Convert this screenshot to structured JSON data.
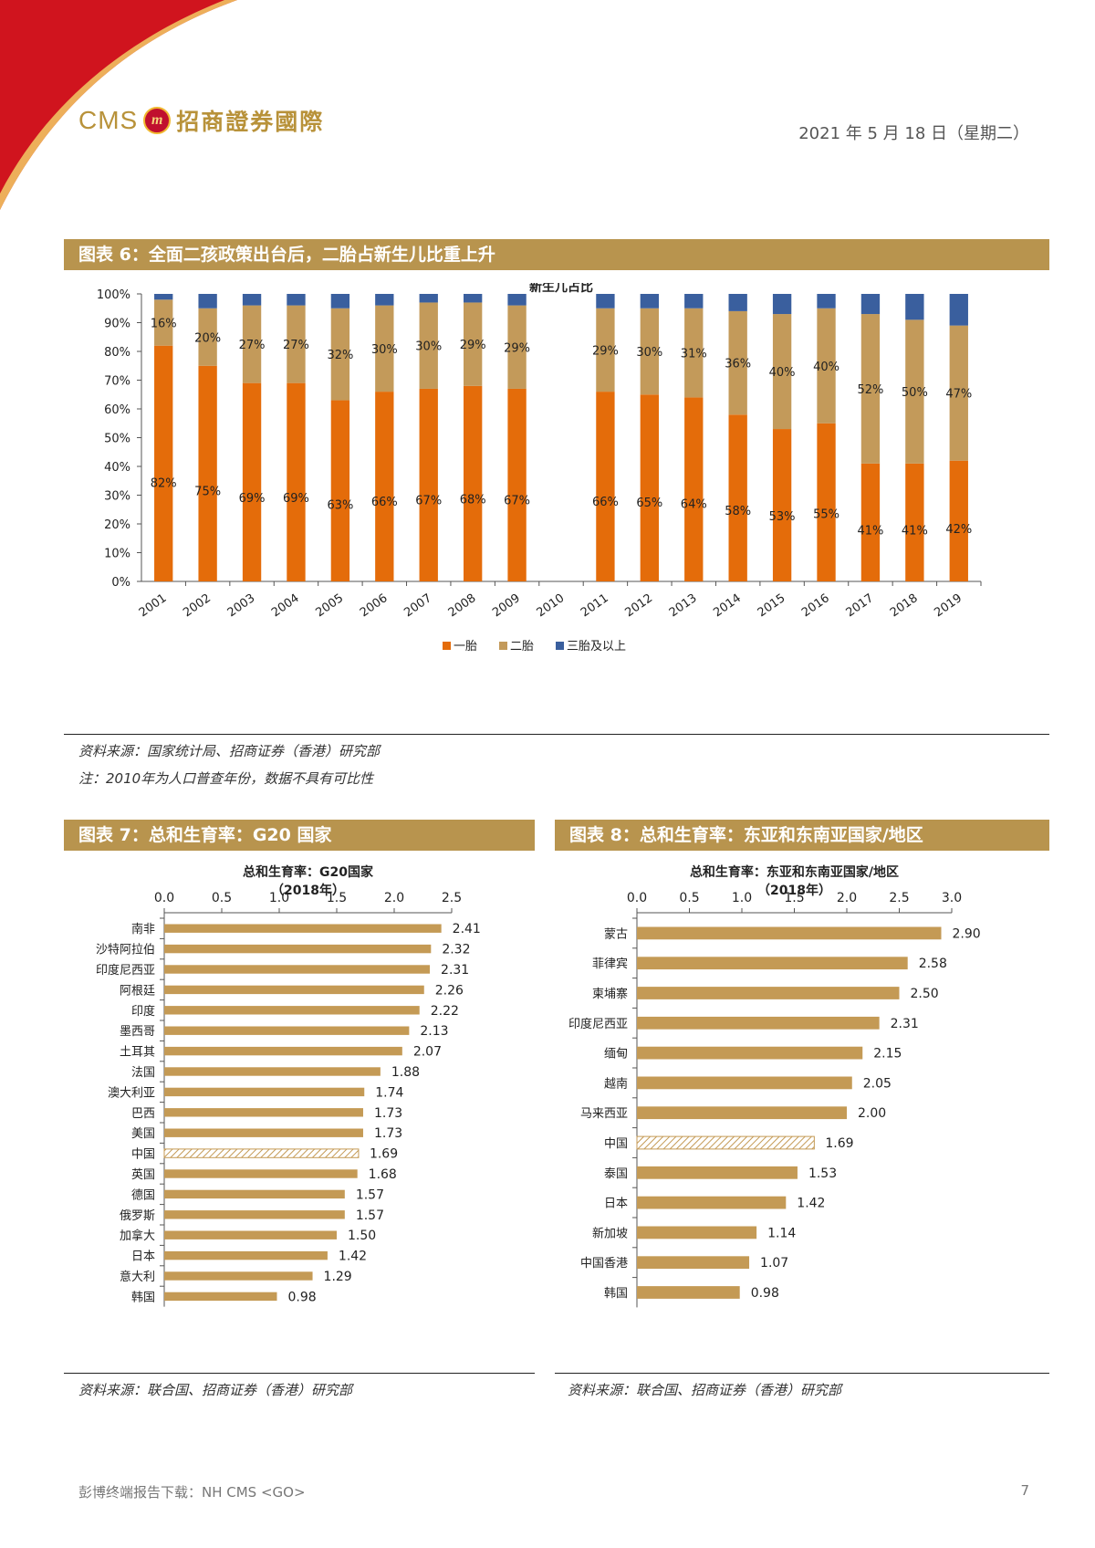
{
  "header": {
    "logo_text": "CMS",
    "logo_mark": "m",
    "logo_cn": "招商證券國際",
    "date": "2021 年 5 月 18 日（星期二）"
  },
  "fig6": {
    "heading": "图表 6：全面二孩政策出台后，二胎占新生儿比重上升",
    "source": "资料来源：国家统计局、招商证券（香港）研究部",
    "note": "注：2010年为人口普查年份，数据不具有可比性"
  },
  "fig7": {
    "heading": "图表 7：总和生育率：G20 国家",
    "source": "资料来源：联合国、招商证券（香港）研究部"
  },
  "fig8": {
    "heading": "图表 8：总和生育率：东亚和东南亚国家/地区",
    "source": "资料来源：联合国、招商证券（香港）研究部"
  },
  "footer": {
    "left": "彭博终端报告下载：NH CMS <GO>",
    "page": "7"
  },
  "colors": {
    "first": "#e46c0a",
    "second": "#c39a5a",
    "third": "#3a5f9e",
    "bar": "#c49a55",
    "gold": "#b8944e"
  },
  "chart_data": [
    {
      "type": "bar",
      "stacked": true,
      "title": "新生儿占比",
      "categories": [
        "2001",
        "2002",
        "2003",
        "2004",
        "2005",
        "2006",
        "2007",
        "2008",
        "2009",
        "2010",
        "2011",
        "2012",
        "2013",
        "2014",
        "2015",
        "2016",
        "2017",
        "2018",
        "2019"
      ],
      "series": [
        {
          "name": "一胎",
          "values": [
            82,
            75,
            69,
            69,
            63,
            66,
            67,
            68,
            67,
            null,
            66,
            65,
            64,
            58,
            53,
            55,
            41,
            41,
            42
          ],
          "labels": [
            "82%",
            "75%",
            "69%",
            "69%",
            "63%",
            "66%",
            "67%",
            "68%",
            "67%",
            null,
            "66%",
            "65%",
            "64%",
            "58%",
            "53%",
            "55%",
            "41%",
            "41%",
            "42%"
          ]
        },
        {
          "name": "二胎",
          "values": [
            16,
            20,
            27,
            27,
            32,
            30,
            30,
            29,
            29,
            null,
            29,
            30,
            31,
            36,
            40,
            40,
            52,
            50,
            47
          ],
          "labels": [
            "16%",
            "20%",
            "27%",
            "27%",
            "32%",
            "30%",
            "30%",
            "29%",
            "29%",
            null,
            "29%",
            "30%",
            "31%",
            "36%",
            "40%",
            "40%",
            "52%",
            "50%",
            "47%"
          ]
        },
        {
          "name": "三胎及以上",
          "values": [
            2,
            5,
            4,
            4,
            5,
            4,
            3,
            3,
            4,
            null,
            5,
            5,
            5,
            6,
            7,
            5,
            7,
            9,
            11
          ]
        }
      ],
      "yticks": [
        "0%",
        "10%",
        "20%",
        "30%",
        "40%",
        "50%",
        "60%",
        "70%",
        "80%",
        "90%",
        "100%"
      ],
      "ylim": [
        0,
        100
      ],
      "legend": "bottom"
    },
    {
      "type": "bar",
      "orientation": "horizontal",
      "title": "总和生育率：G20国家",
      "subtitle": "（2018年）",
      "categories": [
        "南非",
        "沙特阿拉伯",
        "印度尼西亚",
        "阿根廷",
        "印度",
        "墨西哥",
        "土耳其",
        "法国",
        "澳大利亚",
        "巴西",
        "美国",
        "中国",
        "英国",
        "德国",
        "俄罗斯",
        "加拿大",
        "日本",
        "意大利",
        "韩国"
      ],
      "values": [
        2.41,
        2.32,
        2.31,
        2.26,
        2.22,
        2.13,
        2.07,
        1.88,
        1.74,
        1.73,
        1.73,
        1.69,
        1.68,
        1.57,
        1.57,
        1.5,
        1.42,
        1.29,
        0.98
      ],
      "labels": [
        "2.41",
        "2.32",
        "2.31",
        "2.26",
        "2.22",
        "2.13",
        "2.07",
        "1.88",
        "1.74",
        "1.73",
        "1.73",
        "1.69",
        "1.68",
        "1.57",
        "1.57",
        "1.50",
        "1.42",
        "1.29",
        "0.98"
      ],
      "highlight": "中国",
      "xticks": [
        "0.0",
        "0.5",
        "1.0",
        "1.5",
        "2.0",
        "2.5"
      ],
      "xlim": [
        0,
        2.5
      ]
    },
    {
      "type": "bar",
      "orientation": "horizontal",
      "title": "总和生育率：东亚和东南亚国家/地区",
      "subtitle": "（2018年）",
      "categories": [
        "蒙古",
        "菲律宾",
        "柬埔寨",
        "印度尼西亚",
        "缅甸",
        "越南",
        "马来西亚",
        "中国",
        "泰国",
        "日本",
        "新加坡",
        "中国香港",
        "韩国"
      ],
      "values": [
        2.9,
        2.58,
        2.5,
        2.31,
        2.15,
        2.05,
        2.0,
        1.69,
        1.53,
        1.42,
        1.14,
        1.07,
        0.98
      ],
      "labels": [
        "2.90",
        "2.58",
        "2.50",
        "2.31",
        "2.15",
        "2.05",
        "2.00",
        "1.69",
        "1.53",
        "1.42",
        "1.14",
        "1.07",
        "0.98"
      ],
      "highlight": "中国",
      "xticks": [
        "0.0",
        "0.5",
        "1.0",
        "1.5",
        "2.0",
        "2.5",
        "3.0"
      ],
      "xlim": [
        0,
        3.0
      ]
    }
  ]
}
